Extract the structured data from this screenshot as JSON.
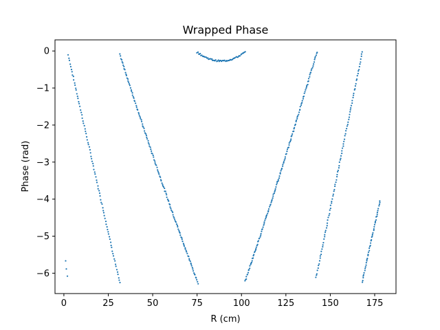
{
  "chart_data": {
    "type": "scatter",
    "title": "Wrapped Phase",
    "xlabel": "R (cm)",
    "ylabel": "Phase (rad)",
    "xlim": [
      -5,
      187
    ],
    "ylim": [
      -6.55,
      0.3
    ],
    "xticks": [
      0,
      25,
      50,
      75,
      100,
      125,
      150,
      175
    ],
    "yticks": [
      0,
      -1,
      -2,
      -3,
      -4,
      -5,
      -6
    ],
    "grid": false,
    "legend": "none",
    "marker_color": "#1f77b4",
    "segments": [
      {
        "x0": 1.0,
        "x1": 2.0,
        "y0": -5.67,
        "y1": -6.08,
        "n": 3
      },
      {
        "x0": 2.5,
        "x1": 31.5,
        "y0": -0.12,
        "y1": -6.27,
        "n": 85
      },
      {
        "x0": 31.5,
        "x1": 75.5,
        "y0": -0.1,
        "y1": -6.27,
        "n": 140,
        "curve": 0.12
      },
      {
        "x0": 75.0,
        "x1": 102.0,
        "parabola": true,
        "y_edge": -0.03,
        "y_mid": -0.27,
        "n": 60
      },
      {
        "x0": 102.0,
        "x1": 142.5,
        "y0": -6.22,
        "y1": -0.02,
        "n": 145,
        "curve": -0.12
      },
      {
        "x0": 142.0,
        "x1": 168.0,
        "y0": -6.13,
        "y1": -0.03,
        "n": 95
      },
      {
        "x0": 168.0,
        "x1": 178.0,
        "y0": -6.23,
        "y1": -4.05,
        "n": 45
      }
    ]
  }
}
